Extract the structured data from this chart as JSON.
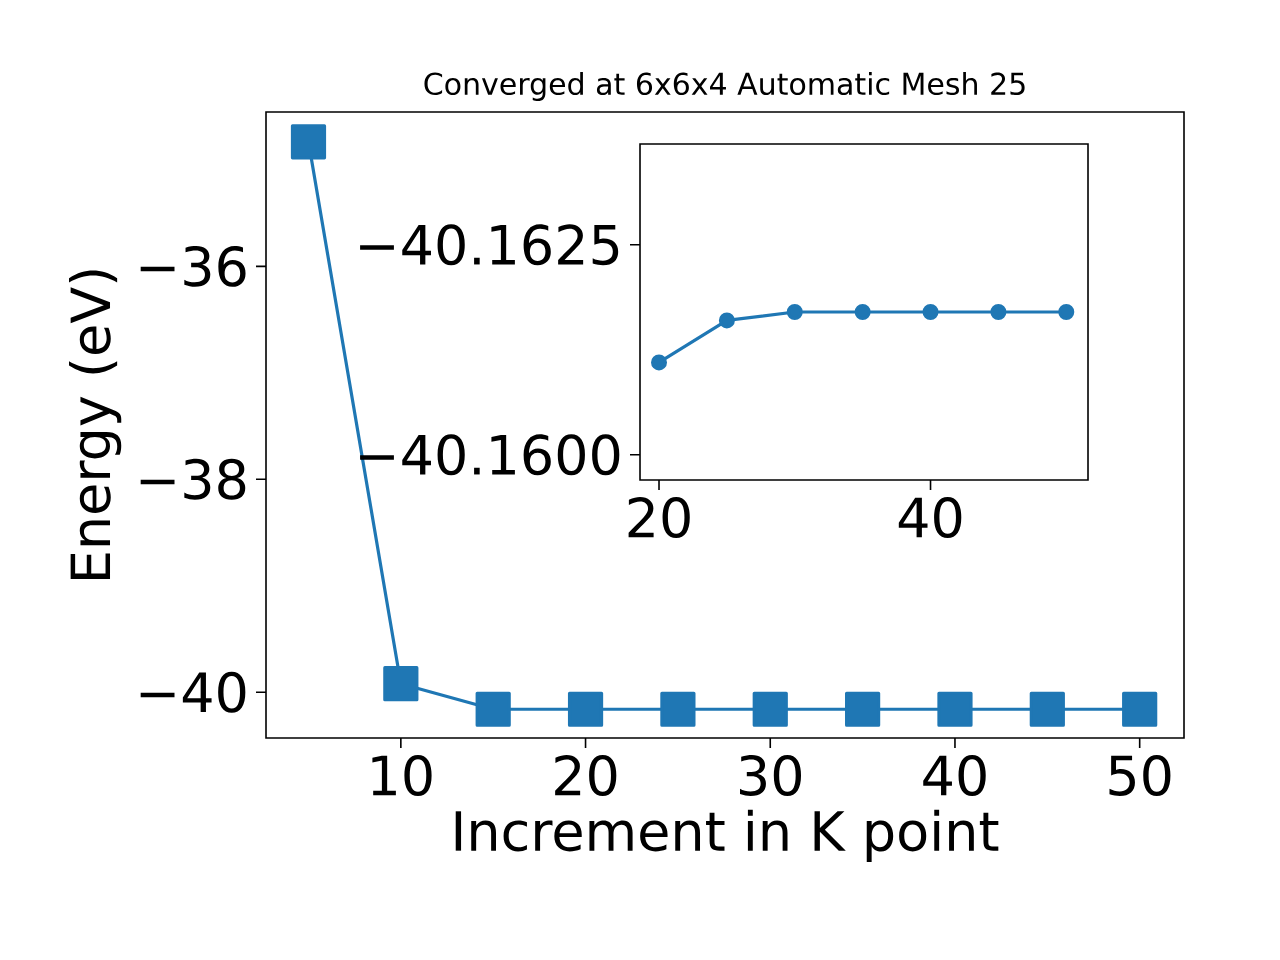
{
  "chart_data": [
    {
      "type": "line",
      "title": "Converged at 6x6x4 Automatic Mesh 25",
      "xlabel": "Increment in K point",
      "ylabel": "Energy (eV)",
      "x": [
        5,
        10,
        15,
        20,
        25,
        30,
        35,
        40,
        45,
        50
      ],
      "values": [
        -34.83,
        -39.92,
        -40.16,
        -40.16,
        -40.16,
        -40.16,
        -40.16,
        -40.16,
        -40.16,
        -40.16
      ],
      "color": "#1f77b4",
      "marker": "square",
      "line_style": "solid",
      "xlim": [
        2.7,
        52.4
      ],
      "ylim": [
        -40.43,
        -34.55
      ],
      "xticks": [
        10,
        20,
        30,
        40,
        50
      ],
      "yticks": [
        {
          "value": -40,
          "label": "−40"
        },
        {
          "value": -38,
          "label": "−38"
        },
        {
          "value": -36,
          "label": "−36"
        }
      ]
    },
    {
      "type": "line",
      "x": [
        20,
        25,
        30,
        35,
        40,
        45,
        50
      ],
      "values": [
        -40.1611,
        -40.1616,
        -40.1617,
        -40.1617,
        -40.1617,
        -40.1617,
        -40.1617
      ],
      "color": "#1f77b4",
      "marker": "circle",
      "line_style": "solid",
      "xlim": [
        18.6,
        51.6
      ],
      "ylim": [
        -40.1597,
        -40.1637
      ],
      "xticks": [
        20,
        40
      ],
      "yticks": [
        {
          "value": -40.16,
          "label": "−40.1600"
        },
        {
          "value": -40.1625,
          "label": "−40.1625"
        }
      ]
    }
  ]
}
